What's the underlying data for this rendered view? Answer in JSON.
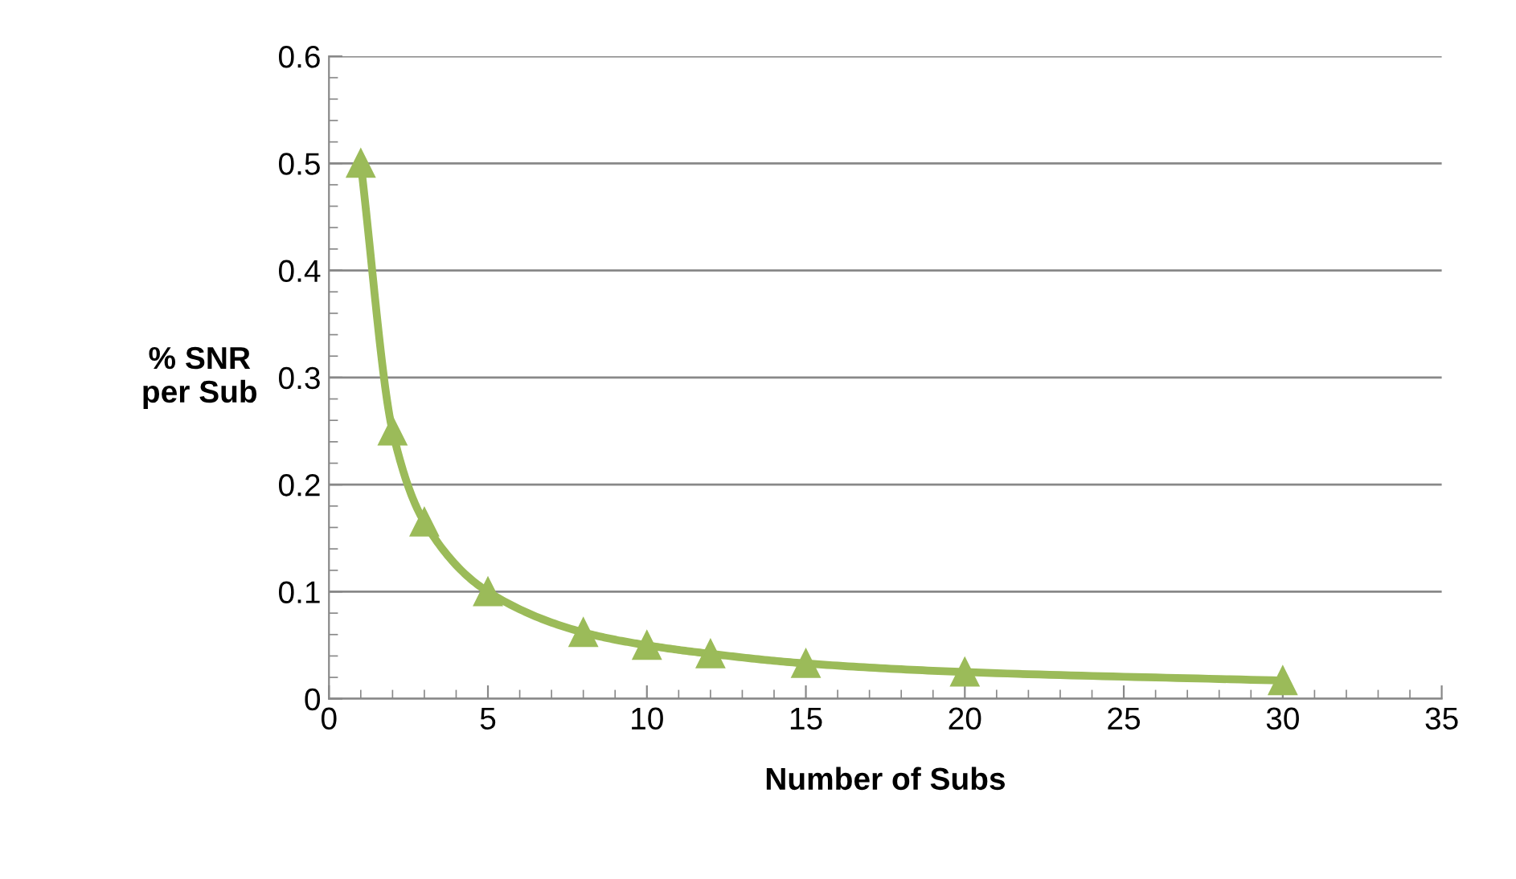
{
  "chart_data": {
    "type": "line",
    "xlabel": "Number of Subs",
    "ylabel": "% SNR\nper Sub",
    "x": [
      1,
      2,
      3,
      5,
      8,
      10,
      12,
      15,
      20,
      30
    ],
    "series": [
      {
        "color": "#9bbb59",
        "values": [
          0.5,
          0.25,
          0.165,
          0.1,
          0.062,
          0.05,
          0.042,
          0.033,
          0.025,
          0.017
        ]
      }
    ],
    "xlim": [
      0,
      35
    ],
    "xticks": [
      0,
      5,
      10,
      15,
      20,
      25,
      30,
      35
    ],
    "ylim": [
      0,
      0.6
    ],
    "yticks": [
      0,
      0.1,
      0.2,
      0.3,
      0.4,
      0.5,
      0.6
    ],
    "grid": "y",
    "marker": "triangle",
    "line_style": "solid",
    "legend": false
  }
}
